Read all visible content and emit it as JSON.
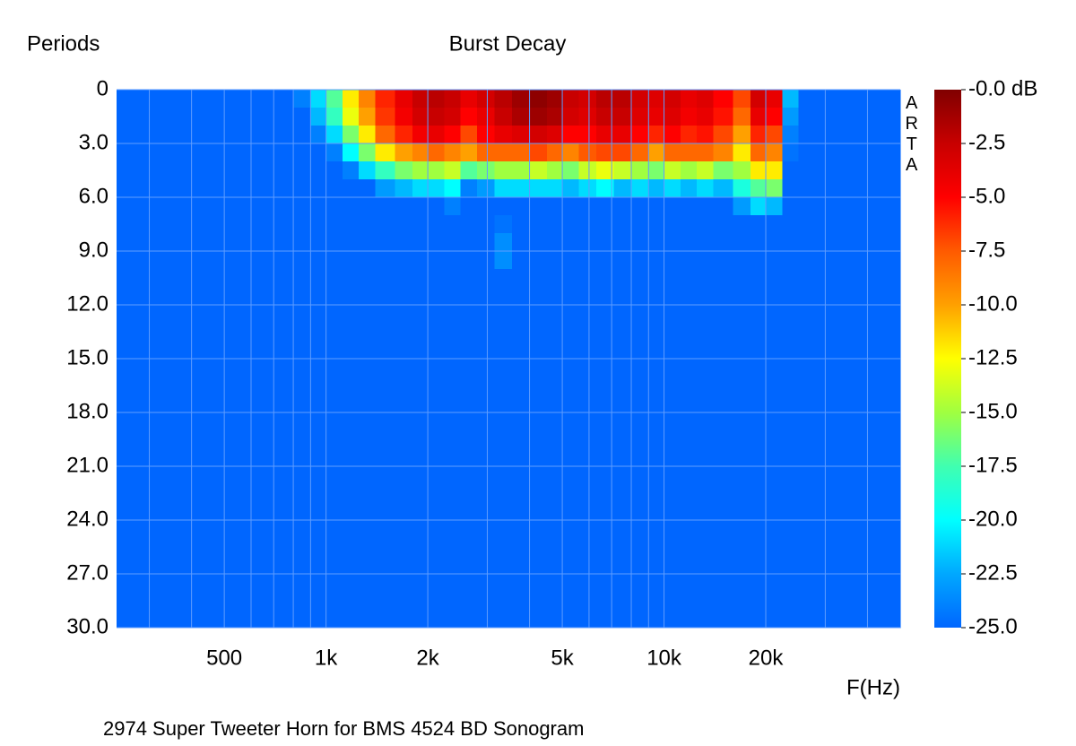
{
  "chart_data": {
    "type": "heatmap",
    "title": "Burst Decay",
    "y_label": "Periods",
    "x_label": "F(Hz)",
    "caption": "2974 Super Tweeter Horn for BMS 4524  BD Sonogram",
    "watermark": "ARTA",
    "x_log": true,
    "xlim": [
      240,
      50000
    ],
    "ylim": [
      0,
      30
    ],
    "y_inverted": true,
    "xticks": [
      500,
      {
        "value": 1000,
        "label": "1k"
      },
      {
        "value": 2000,
        "label": "2k"
      },
      {
        "value": 5000,
        "label": "5k"
      },
      {
        "value": 10000,
        "label": "10k"
      },
      {
        "value": 20000,
        "label": "20k"
      }
    ],
    "x_minor_ticks": [
      300,
      400,
      600,
      700,
      800,
      900,
      3000,
      4000,
      6000,
      7000,
      8000,
      9000,
      30000,
      40000
    ],
    "yticks": [
      0,
      {
        "value": 3,
        "label": "3.0"
      },
      {
        "value": 6,
        "label": "6.0"
      },
      {
        "value": 9,
        "label": "9.0"
      },
      {
        "value": 12,
        "label": "12.0"
      },
      {
        "value": 15,
        "label": "15.0"
      },
      {
        "value": 18,
        "label": "18.0"
      },
      {
        "value": 21,
        "label": "21.0"
      },
      {
        "value": 24,
        "label": "24.0"
      },
      {
        "value": 27,
        "label": "27.0"
      },
      {
        "value": 30,
        "label": "30.0"
      }
    ],
    "grid": true,
    "grid_color": "#5f9dff",
    "zlim": [
      -25,
      0
    ],
    "colorscale": [
      "#0066ff",
      "#00a8ff",
      "#00ffff",
      "#40ffb0",
      "#a0ff40",
      "#ffff00",
      "#ffa000",
      "#ff5a00",
      "#ff0000",
      "#c80000",
      "#800000"
    ],
    "cbar_ticks": [
      {
        "value": 0,
        "label": "-0.0 dB"
      },
      -2.5,
      {
        "value": -5,
        "label": "-5.0"
      },
      -7.5,
      {
        "value": -10,
        "label": "-10.0"
      },
      -12.5,
      {
        "value": -15,
        "label": "-15.0"
      },
      -17.5,
      {
        "value": -20,
        "label": "-20.0"
      },
      -22.5,
      {
        "value": -25,
        "label": "-25.0"
      }
    ],
    "x_bins": [
      240,
      800,
      900,
      1000,
      1120,
      1250,
      1400,
      1600,
      1800,
      2000,
      2240,
      2500,
      2800,
      3150,
      3550,
      4000,
      4500,
      5000,
      5600,
      6300,
      7100,
      8000,
      9000,
      10000,
      11200,
      12500,
      14000,
      16000,
      18000,
      20000,
      22400,
      25000,
      50000
    ],
    "y_bins": [
      0,
      1,
      2,
      3,
      4,
      5,
      6,
      7,
      8,
      10,
      30
    ],
    "z": [
      [
        -25,
        -24,
        -21,
        -17,
        -12,
        -9,
        -6,
        -4,
        -2.5,
        -2,
        -2.5,
        -4,
        -3,
        -2,
        -1,
        -0.5,
        -1,
        -2.5,
        -3,
        -2,
        -2,
        -3,
        -3.5,
        -3,
        -4,
        -3.5,
        -5,
        -7,
        -3,
        -4,
        -22,
        -25
      ],
      [
        -25,
        -25,
        -22,
        -18,
        -13,
        -10,
        -6.5,
        -4.5,
        -3,
        -2.5,
        -3,
        -5,
        -4,
        -2.5,
        -1.5,
        -1,
        -1.5,
        -3,
        -3.5,
        -2.5,
        -2.5,
        -3.5,
        -4,
        -3.5,
        -4.5,
        -4,
        -5.5,
        -8,
        -4,
        -5,
        -23,
        -25
      ],
      [
        -25,
        -25,
        -24,
        -21,
        -16,
        -12,
        -8,
        -6,
        -4.5,
        -4,
        -5,
        -7,
        -5,
        -4,
        -3.5,
        -3,
        -3.5,
        -5,
        -5,
        -4,
        -4,
        -5,
        -6,
        -5,
        -6,
        -5.5,
        -7,
        -10,
        -6,
        -7,
        -24,
        -25
      ],
      [
        -25,
        -25,
        -25,
        -24,
        -20,
        -16,
        -12,
        -10,
        -9,
        -8,
        -9,
        -10,
        -8,
        -8,
        -8,
        -7,
        -8,
        -9,
        -7.5,
        -7,
        -7,
        -8,
        -10,
        -8,
        -8,
        -8,
        -9,
        -12,
        -8,
        -9,
        -24.5,
        -25
      ],
      [
        -25,
        -25,
        -25,
        -25,
        -24,
        -21,
        -18,
        -16,
        -15,
        -15,
        -14,
        -17,
        -16,
        -15,
        -15,
        -14,
        -15,
        -16,
        -14,
        -13,
        -14,
        -15,
        -16,
        -14,
        -15,
        -14,
        -16,
        -15,
        -12,
        -12,
        -25,
        -25
      ],
      [
        -25,
        -25,
        -25,
        -25,
        -25,
        -25,
        -23,
        -22,
        -21,
        -21,
        -20,
        -24,
        -23,
        -21,
        -21,
        -21,
        -21,
        -22,
        -21,
        -20,
        -22,
        -21,
        -22,
        -21,
        -22,
        -21,
        -22,
        -19,
        -17,
        -16,
        -25,
        -25
      ],
      [
        -25,
        -25,
        -25,
        -25,
        -25,
        -25,
        -25,
        -25,
        -25,
        -25,
        -24,
        -25,
        -25,
        -25,
        -25,
        -25,
        -25,
        -25,
        -25,
        -25,
        -25,
        -25,
        -25,
        -25,
        -25,
        -25,
        -25,
        -23,
        -21,
        -22,
        -25,
        -25
      ],
      [
        -25,
        -25,
        -25,
        -25,
        -25,
        -25,
        -25,
        -25,
        -25,
        -25,
        -25,
        -25,
        -25,
        -24.5,
        -25,
        -25,
        -25,
        -25,
        -25,
        -25,
        -25,
        -25,
        -25,
        -25,
        -25,
        -25,
        -25,
        -25,
        -25,
        -25,
        -25,
        -25
      ],
      [
        -25,
        -25,
        -25,
        -25,
        -25,
        -25,
        -25,
        -25,
        -25,
        -25,
        -25,
        -25,
        -25,
        -23.5,
        -25,
        -25,
        -25,
        -25,
        -25,
        -25,
        -25,
        -25,
        -25,
        -25,
        -25,
        -25,
        -25,
        -25,
        -25,
        -25,
        -25,
        -25
      ],
      [
        -25,
        -25,
        -25,
        -25,
        -25,
        -25,
        -25,
        -25,
        -25,
        -25,
        -25,
        -25,
        -25,
        -25,
        -25,
        -25,
        -25,
        -25,
        -25,
        -25,
        -25,
        -25,
        -25,
        -25,
        -25,
        -25,
        -25,
        -25,
        -25,
        -25,
        -25,
        -25
      ]
    ]
  }
}
